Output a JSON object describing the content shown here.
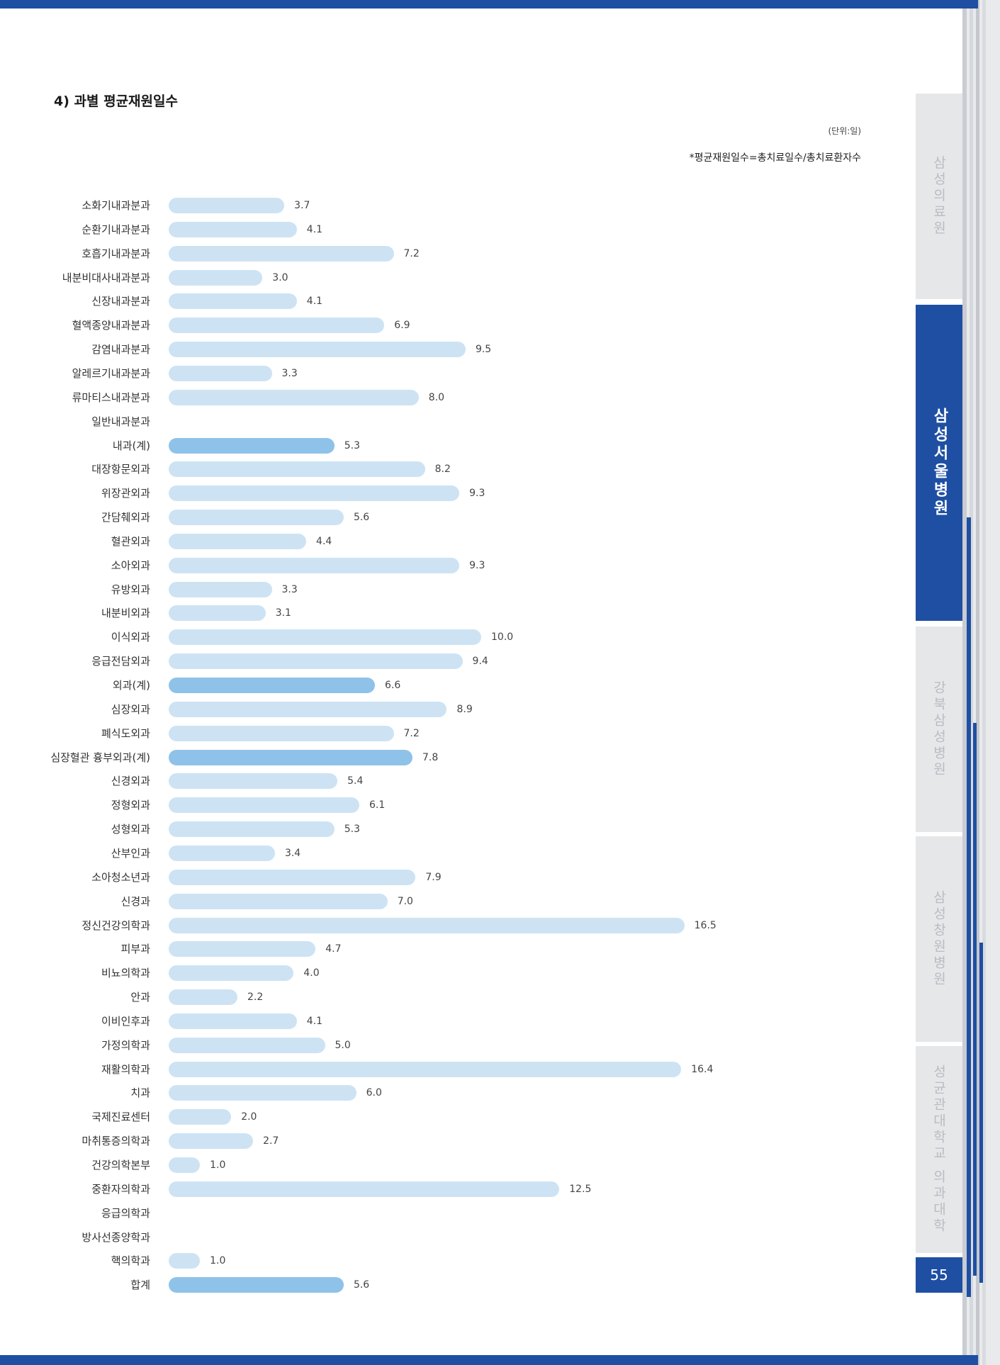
{
  "header": {
    "section_title": "4) 과별 평균재원일수",
    "unit": "(단위:일)",
    "formula": "*평균재원일수=총치료일수/총치료환자수"
  },
  "sidebar": {
    "tabs": [
      {
        "label": "삼성의료원",
        "active": false
      },
      {
        "label": "삼성서울병원",
        "active": true
      },
      {
        "label": "강북삼성병원",
        "active": false
      },
      {
        "label": "삼성창원병원",
        "active": false
      },
      {
        "label": "성균관대학교 의과대학",
        "active": false
      }
    ],
    "page_number": "55"
  },
  "colors": {
    "bar": "#cde3f4",
    "bar_total": "#8fc2e8",
    "accent": "#1e4fa3"
  },
  "chart_data": {
    "type": "bar",
    "orientation": "horizontal",
    "title": "",
    "xlabel": "",
    "ylabel": "",
    "xlim": [
      0,
      18
    ],
    "grid": false,
    "legend": "none",
    "categories": [
      "소화기내과분과",
      "순환기내과분과",
      "호흡기내과분과",
      "내분비대사내과분과",
      "신장내과분과",
      "혈액종양내과분과",
      "감염내과분과",
      "알레르기내과분과",
      "류마티스내과분과",
      "일반내과분과",
      "내과(계)",
      "대장항문외과",
      "위장관외과",
      "간담췌외과",
      "혈관외과",
      "소아외과",
      "유방외과",
      "내분비외과",
      "이식외과",
      "응급전담외과",
      "외과(계)",
      "심장외과",
      "폐식도외과",
      "심장혈관 흉부외과(계)",
      "신경외과",
      "정형외과",
      "성형외과",
      "산부인과",
      "소아청소년과",
      "신경과",
      "정신건강의학과",
      "피부과",
      "비뇨의학과",
      "안과",
      "이비인후과",
      "가정의학과",
      "재활의학과",
      "치과",
      "국제진료센터",
      "마취통증의학과",
      "건강의학본부",
      "중환자의학과",
      "응급의학과",
      "방사선종양학과",
      "핵의학과",
      "합계"
    ],
    "values": [
      3.7,
      4.1,
      7.2,
      3.0,
      4.1,
      6.9,
      9.5,
      3.3,
      8.0,
      null,
      5.3,
      8.2,
      9.3,
      5.6,
      4.4,
      9.3,
      3.3,
      3.1,
      10.0,
      9.4,
      6.6,
      8.9,
      7.2,
      7.8,
      5.4,
      6.1,
      5.3,
      3.4,
      7.9,
      7.0,
      16.5,
      4.7,
      4.0,
      2.2,
      4.1,
      5.0,
      16.4,
      6.0,
      2.0,
      2.7,
      1.0,
      12.5,
      null,
      null,
      1.0,
      5.6
    ],
    "value_labels": [
      "3.7",
      "4.1",
      "7.2",
      "3.0",
      "4.1",
      "6.9",
      "9.5",
      "3.3",
      "8.0",
      "",
      "5.3",
      "8.2",
      "9.3",
      "5.6",
      "4.4",
      "9.3",
      "3.3",
      "3.1",
      "10.0",
      "9.4",
      "6.6",
      "8.9",
      "7.2",
      "7.8",
      "5.4",
      "6.1",
      "5.3",
      "3.4",
      "7.9",
      "7.0",
      "16.5",
      "4.7",
      "4.0",
      "2.2",
      "4.1",
      "5.0",
      "16.4",
      "6.0",
      "2.0",
      "2.7",
      "1.0",
      "12.5",
      "",
      "",
      "1.0",
      "5.6"
    ],
    "subtotal_categories": [
      "내과(계)",
      "외과(계)",
      "심장혈관 흉부외과(계)",
      "합계"
    ]
  }
}
